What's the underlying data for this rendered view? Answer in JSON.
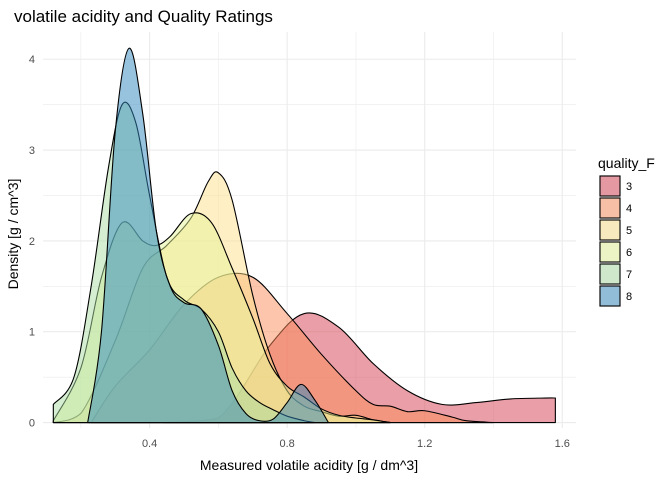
{
  "chart_data": {
    "type": "area",
    "title": "volatile acidity and Quality Ratings",
    "xlabel": "Measured volatile acidity [g / dm^3]",
    "ylabel": "Density [g / cm^3]",
    "xlim": [
      0.09,
      1.64
    ],
    "ylim": [
      -0.06,
      4.3
    ],
    "x_ticks": [
      0.4,
      0.8,
      1.2,
      1.6
    ],
    "x_tick_labels": [
      "0.4",
      "0.8",
      "1.2",
      "1.6"
    ],
    "y_ticks": [
      0,
      1,
      2,
      3,
      4
    ],
    "y_tick_labels": [
      "0",
      "1",
      "2",
      "3",
      "4"
    ],
    "grid": true,
    "legend": {
      "title": "quality_F",
      "position": "right"
    },
    "series": [
      {
        "name": "3",
        "color": "#d53e4f",
        "x": [
          0.44,
          0.6,
          0.75,
          0.85,
          0.95,
          1.05,
          1.15,
          1.25,
          1.35,
          1.45,
          1.55,
          1.58
        ],
        "y": [
          0.0,
          0.05,
          0.85,
          1.2,
          1.05,
          0.65,
          0.35,
          0.2,
          0.22,
          0.26,
          0.27,
          0.27
        ]
      },
      {
        "name": "4",
        "color": "#fc8d59",
        "x": [
          0.23,
          0.3,
          0.4,
          0.5,
          0.6,
          0.7,
          0.8,
          0.9,
          1.0,
          1.05,
          1.1,
          1.15,
          1.2,
          1.28,
          1.32,
          1.4
        ],
        "y": [
          0.0,
          0.4,
          0.8,
          1.3,
          1.6,
          1.6,
          1.2,
          0.75,
          0.35,
          0.2,
          0.18,
          0.12,
          0.13,
          0.06,
          0.02,
          0.0
        ]
      },
      {
        "name": "5",
        "color": "#fee08b",
        "x": [
          0.12,
          0.2,
          0.3,
          0.38,
          0.45,
          0.52,
          0.57,
          0.6,
          0.64,
          0.7,
          0.75,
          0.8,
          0.85,
          0.9,
          0.95,
          1.0,
          1.05,
          1.1
        ],
        "y": [
          0.0,
          0.1,
          0.9,
          1.7,
          1.95,
          2.25,
          2.65,
          2.75,
          2.45,
          1.4,
          0.75,
          0.35,
          0.18,
          0.12,
          0.07,
          0.08,
          0.03,
          0.0
        ]
      },
      {
        "name": "6",
        "color": "#e6f598",
        "x": [
          0.12,
          0.2,
          0.26,
          0.32,
          0.38,
          0.42,
          0.46,
          0.52,
          0.58,
          0.64,
          0.7,
          0.75,
          0.8,
          0.85,
          0.9,
          0.95,
          1.0,
          1.05,
          1.1
        ],
        "y": [
          0.02,
          0.6,
          1.6,
          2.2,
          2.0,
          1.95,
          2.05,
          2.3,
          2.2,
          1.7,
          1.15,
          0.65,
          0.4,
          0.28,
          0.15,
          0.08,
          0.05,
          0.03,
          0.0
        ]
      },
      {
        "name": "7",
        "color": "#abdda4",
        "x": [
          0.12,
          0.18,
          0.23,
          0.28,
          0.32,
          0.36,
          0.4,
          0.45,
          0.5,
          0.55,
          0.6,
          0.64,
          0.68,
          0.72,
          0.76,
          0.8,
          0.85,
          0.88
        ],
        "y": [
          0.2,
          0.5,
          1.5,
          2.8,
          3.5,
          3.3,
          2.5,
          1.6,
          1.35,
          1.25,
          1.0,
          0.6,
          0.35,
          0.22,
          0.14,
          0.07,
          0.02,
          0.0
        ]
      },
      {
        "name": "8",
        "color": "#3288bd",
        "x": [
          0.22,
          0.26,
          0.3,
          0.34,
          0.38,
          0.42,
          0.46,
          0.5,
          0.55,
          0.6,
          0.64,
          0.68,
          0.72,
          0.76,
          0.8,
          0.84,
          0.88,
          0.92
        ],
        "y": [
          0.0,
          1.0,
          3.2,
          4.12,
          3.4,
          2.1,
          1.5,
          1.32,
          1.25,
          0.85,
          0.35,
          0.1,
          0.02,
          0.04,
          0.22,
          0.42,
          0.25,
          0.0
        ]
      }
    ]
  }
}
